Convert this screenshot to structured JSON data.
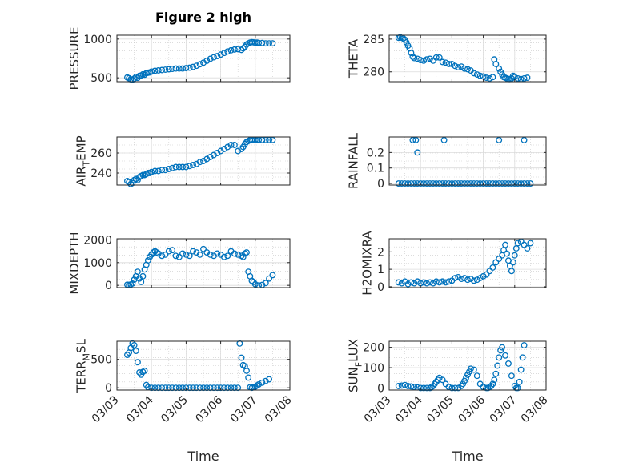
{
  "figure": {
    "title": "Figure 2 high"
  },
  "colors": {
    "marker": "#0072BD",
    "axis": "#262626",
    "grid": "#c8c8c8",
    "background": "#ffffff"
  },
  "x_axis": {
    "label": "Time",
    "ticks": [
      {
        "value": 0,
        "label": "03/03"
      },
      {
        "value": 1,
        "label": "03/04"
      },
      {
        "value": 2,
        "label": "03/05"
      },
      {
        "value": 3,
        "label": "03/06"
      },
      {
        "value": 4,
        "label": "03/07"
      },
      {
        "value": 5,
        "label": "03/08"
      }
    ],
    "range": [
      0,
      5
    ]
  },
  "chart_data": [
    {
      "id": "pressure",
      "type": "scatter",
      "ylabel": "PRESSURE",
      "ylim": [
        450,
        1050
      ],
      "yticks": [
        {
          "value": 500,
          "label": "500"
        },
        {
          "value": 1000,
          "label": "1000"
        }
      ],
      "grid": true,
      "show_xlabels": false,
      "x": [
        0.3,
        0.35,
        0.4,
        0.45,
        0.5,
        0.55,
        0.6,
        0.65,
        0.7,
        0.75,
        0.8,
        0.85,
        0.9,
        0.95,
        1.0,
        1.1,
        1.2,
        1.3,
        1.4,
        1.5,
        1.6,
        1.7,
        1.8,
        1.9,
        2.0,
        2.1,
        2.2,
        2.3,
        2.4,
        2.5,
        2.6,
        2.7,
        2.8,
        2.9,
        3.0,
        3.1,
        3.2,
        3.3,
        3.4,
        3.5,
        3.6,
        3.65,
        3.7,
        3.75,
        3.8,
        3.85,
        3.9,
        3.95,
        4.0,
        4.05,
        4.1,
        4.2,
        4.3,
        4.4,
        4.5
      ],
      "y": [
        505,
        495,
        480,
        475,
        490,
        510,
        500,
        525,
        530,
        545,
        540,
        560,
        565,
        570,
        580,
        590,
        595,
        600,
        605,
        610,
        615,
        620,
        620,
        620,
        625,
        630,
        640,
        655,
        675,
        695,
        720,
        745,
        765,
        780,
        800,
        820,
        840,
        855,
        865,
        870,
        860,
        880,
        900,
        930,
        945,
        955,
        960,
        958,
        955,
        955,
        950,
        950,
        945,
        945,
        945
      ]
    },
    {
      "id": "theta",
      "type": "scatter",
      "ylabel": "THETA",
      "ylim": [
        278.5,
        285.6
      ],
      "yticks": [
        {
          "value": 280,
          "label": "280"
        },
        {
          "value": 285,
          "label": "285"
        }
      ],
      "grid": true,
      "show_xlabels": false,
      "x": [
        0.3,
        0.35,
        0.4,
        0.45,
        0.5,
        0.55,
        0.6,
        0.65,
        0.7,
        0.75,
        0.8,
        0.9,
        1.0,
        1.1,
        1.2,
        1.3,
        1.4,
        1.5,
        1.6,
        1.7,
        1.8,
        1.9,
        2.0,
        2.1,
        2.2,
        2.3,
        2.4,
        2.5,
        2.6,
        2.7,
        2.8,
        2.9,
        3.0,
        3.1,
        3.2,
        3.3,
        3.35,
        3.4,
        3.5,
        3.55,
        3.6,
        3.65,
        3.7,
        3.75,
        3.8,
        3.85,
        3.9,
        3.95,
        4.0,
        4.1,
        4.2,
        4.3,
        4.4
      ],
      "y": [
        285.2,
        285.3,
        285.2,
        285.1,
        284.9,
        284.5,
        284.0,
        283.6,
        282.9,
        282.3,
        282.1,
        282.0,
        281.8,
        281.7,
        281.9,
        282.0,
        281.7,
        282.2,
        282.2,
        281.5,
        281.4,
        281.2,
        281.2,
        280.9,
        280.7,
        280.8,
        280.5,
        280.4,
        280.2,
        279.8,
        279.6,
        279.4,
        279.3,
        279.1,
        279.0,
        279.2,
        281.9,
        281.2,
        280.5,
        280.0,
        279.6,
        279.2,
        279.1,
        279.0,
        278.9,
        278.9,
        279.0,
        279.4,
        279.2,
        279.0,
        278.9,
        279.0,
        279.1
      ]
    },
    {
      "id": "air_temp",
      "type": "scatter",
      "ylabel": "AIR",
      "ylabel_sub": "T",
      "ylabel_tail": "EMP",
      "ylim": [
        228,
        276
      ],
      "yticks": [
        {
          "value": 240,
          "label": "240"
        },
        {
          "value": 260,
          "label": "260"
        }
      ],
      "grid": true,
      "show_xlabels": false,
      "x": [
        0.3,
        0.35,
        0.4,
        0.45,
        0.5,
        0.55,
        0.6,
        0.65,
        0.7,
        0.75,
        0.8,
        0.85,
        0.9,
        0.95,
        1.0,
        1.1,
        1.2,
        1.3,
        1.4,
        1.5,
        1.6,
        1.7,
        1.8,
        1.9,
        2.0,
        2.1,
        2.2,
        2.3,
        2.4,
        2.5,
        2.6,
        2.7,
        2.8,
        2.9,
        3.0,
        3.1,
        3.2,
        3.3,
        3.4,
        3.5,
        3.6,
        3.65,
        3.7,
        3.75,
        3.8,
        3.85,
        3.9,
        3.95,
        4.0,
        4.05,
        4.1,
        4.2,
        4.3,
        4.4,
        4.5
      ],
      "y": [
        232,
        231,
        229,
        230,
        233,
        234,
        233,
        236,
        237,
        238,
        238,
        239,
        240,
        240,
        241,
        242,
        242,
        243,
        243,
        244,
        245,
        246,
        246,
        246,
        246,
        247,
        248,
        249,
        251,
        252,
        254,
        256,
        258,
        260,
        262,
        264,
        266,
        268,
        268,
        262,
        264,
        266,
        269,
        271,
        272,
        273,
        273,
        273,
        273,
        273,
        273,
        273,
        273,
        273,
        273
      ]
    },
    {
      "id": "rainfall",
      "type": "scatter",
      "ylabel": "RAINFALL",
      "ylim": [
        -0.01,
        0.3
      ],
      "yticks": [
        {
          "value": 0,
          "label": "0"
        },
        {
          "value": 0.1,
          "label": "0.1"
        },
        {
          "value": 0.2,
          "label": "0.2"
        }
      ],
      "grid": true,
      "show_xlabels": false,
      "x": [
        0.3,
        0.4,
        0.5,
        0.6,
        0.7,
        0.8,
        0.9,
        1.0,
        1.1,
        1.2,
        1.3,
        1.4,
        1.5,
        1.6,
        1.7,
        1.8,
        1.9,
        2.0,
        2.1,
        2.2,
        2.3,
        2.4,
        2.5,
        2.6,
        2.7,
        2.8,
        2.9,
        3.0,
        3.1,
        3.2,
        3.3,
        3.4,
        3.5,
        3.6,
        3.7,
        3.8,
        3.9,
        4.0,
        4.1,
        4.2,
        4.3,
        4.4,
        4.5,
        0.75,
        0.85,
        0.9,
        1.75,
        3.5,
        4.3
      ],
      "y": [
        0,
        0,
        0,
        0,
        0,
        0,
        0,
        0,
        0,
        0,
        0,
        0,
        0,
        0,
        0,
        0,
        0,
        0,
        0,
        0,
        0,
        0,
        0,
        0,
        0,
        0,
        0,
        0,
        0,
        0,
        0,
        0,
        0,
        0,
        0,
        0,
        0,
        0,
        0,
        0,
        0,
        0,
        0,
        0.28,
        0.28,
        0.2,
        0.28,
        0.28,
        0.28
      ]
    },
    {
      "id": "mixdepth",
      "type": "scatter",
      "ylabel": "MIXDEPTH",
      "ylim": [
        -100,
        2050
      ],
      "yticks": [
        {
          "value": 0,
          "label": "0"
        },
        {
          "value": 1000,
          "label": "1000"
        },
        {
          "value": 2000,
          "label": "2000"
        }
      ],
      "grid": true,
      "show_xlabels": false,
      "x": [
        0.3,
        0.35,
        0.4,
        0.45,
        0.5,
        0.55,
        0.6,
        0.65,
        0.7,
        0.75,
        0.8,
        0.85,
        0.9,
        0.95,
        1.0,
        1.05,
        1.1,
        1.15,
        1.2,
        1.3,
        1.4,
        1.5,
        1.6,
        1.7,
        1.8,
        1.9,
        2.0,
        2.1,
        2.2,
        2.3,
        2.4,
        2.5,
        2.6,
        2.7,
        2.8,
        2.9,
        3.0,
        3.1,
        3.2,
        3.3,
        3.4,
        3.5,
        3.6,
        3.65,
        3.7,
        3.75,
        3.8,
        3.85,
        3.9,
        3.95,
        4.0,
        4.1,
        4.2,
        4.3,
        4.4,
        4.5
      ],
      "y": [
        30,
        20,
        40,
        80,
        250,
        400,
        600,
        300,
        150,
        400,
        700,
        900,
        1100,
        1250,
        1350,
        1450,
        1500,
        1450,
        1400,
        1300,
        1350,
        1500,
        1550,
        1300,
        1250,
        1400,
        1350,
        1300,
        1500,
        1450,
        1350,
        1600,
        1450,
        1350,
        1300,
        1400,
        1350,
        1250,
        1300,
        1500,
        1400,
        1350,
        1300,
        1250,
        1400,
        1450,
        600,
        400,
        200,
        150,
        50,
        0,
        20,
        100,
        300,
        450
      ]
    },
    {
      "id": "h2omixra",
      "type": "scatter",
      "ylabel": "H2OMIXRA",
      "ylim": [
        -0.05,
        2.75
      ],
      "yticks": [
        {
          "value": 0,
          "label": "0"
        },
        {
          "value": 1,
          "label": "1"
        },
        {
          "value": 2,
          "label": "2"
        }
      ],
      "grid": true,
      "show_xlabels": false,
      "x": [
        0.3,
        0.4,
        0.5,
        0.6,
        0.7,
        0.8,
        0.9,
        1.0,
        1.1,
        1.2,
        1.3,
        1.4,
        1.5,
        1.6,
        1.7,
        1.8,
        1.9,
        2.0,
        2.1,
        2.2,
        2.3,
        2.4,
        2.5,
        2.6,
        2.7,
        2.8,
        2.9,
        3.0,
        3.1,
        3.2,
        3.3,
        3.4,
        3.5,
        3.6,
        3.65,
        3.7,
        3.75,
        3.8,
        3.85,
        3.9,
        3.95,
        4.0,
        4.05,
        4.1,
        4.2,
        4.3,
        4.4,
        4.5
      ],
      "y": [
        0.25,
        0.2,
        0.3,
        0.15,
        0.25,
        0.2,
        0.3,
        0.2,
        0.25,
        0.2,
        0.25,
        0.2,
        0.3,
        0.25,
        0.3,
        0.25,
        0.3,
        0.35,
        0.5,
        0.55,
        0.45,
        0.5,
        0.4,
        0.45,
        0.35,
        0.4,
        0.5,
        0.6,
        0.7,
        0.9,
        1.1,
        1.4,
        1.6,
        1.8,
        2.1,
        2.4,
        1.9,
        1.5,
        1.2,
        0.9,
        1.4,
        1.8,
        2.2,
        2.5,
        2.6,
        2.4,
        2.2,
        2.5
      ]
    },
    {
      "id": "terr_msl",
      "type": "scatter",
      "ylabel": "TERR",
      "ylabel_sub": "M",
      "ylabel_tail": "SL",
      "ylim": [
        -40,
        820
      ],
      "yticks": [
        {
          "value": 0,
          "label": "0"
        },
        {
          "value": 500,
          "label": "500"
        }
      ],
      "grid": true,
      "show_xlabels": true,
      "x": [
        0.3,
        0.35,
        0.4,
        0.45,
        0.5,
        0.55,
        0.6,
        0.65,
        0.7,
        0.75,
        0.8,
        0.85,
        0.9,
        1.0,
        1.1,
        1.2,
        1.3,
        1.4,
        1.5,
        1.6,
        1.7,
        1.8,
        1.9,
        2.0,
        2.1,
        2.2,
        2.3,
        2.4,
        2.5,
        2.6,
        2.7,
        2.8,
        2.9,
        3.0,
        3.1,
        3.2,
        3.3,
        3.4,
        3.5,
        3.55,
        3.6,
        3.65,
        3.7,
        3.75,
        3.8,
        3.85,
        3.9,
        3.95,
        4.0,
        4.05,
        4.1,
        4.2,
        4.3,
        4.4
      ],
      "y": [
        580,
        620,
        700,
        780,
        750,
        650,
        450,
        270,
        230,
        280,
        300,
        50,
        10,
        0,
        0,
        0,
        0,
        0,
        0,
        0,
        0,
        0,
        0,
        0,
        0,
        0,
        0,
        0,
        0,
        0,
        0,
        0,
        0,
        0,
        0,
        0,
        0,
        0,
        0,
        780,
        530,
        400,
        380,
        300,
        180,
        10,
        0,
        10,
        20,
        40,
        60,
        90,
        120,
        150
      ]
    },
    {
      "id": "sun_flux",
      "type": "scatter",
      "ylabel": "SUN",
      "ylabel_sub": "F",
      "ylabel_tail": "LUX",
      "ylim": [
        -10,
        230
      ],
      "yticks": [
        {
          "value": 0,
          "label": "0"
        },
        {
          "value": 100,
          "label": "100"
        },
        {
          "value": 200,
          "label": "200"
        }
      ],
      "grid": true,
      "show_xlabels": true,
      "x": [
        0.3,
        0.4,
        0.5,
        0.6,
        0.7,
        0.8,
        0.9,
        1.0,
        1.1,
        1.2,
        1.3,
        1.35,
        1.4,
        1.45,
        1.5,
        1.55,
        1.6,
        1.7,
        1.8,
        1.9,
        2.0,
        2.1,
        2.2,
        2.3,
        2.35,
        2.4,
        2.45,
        2.5,
        2.55,
        2.6,
        2.7,
        2.8,
        2.9,
        3.0,
        3.1,
        3.15,
        3.2,
        3.25,
        3.3,
        3.35,
        3.4,
        3.45,
        3.5,
        3.55,
        3.6,
        3.7,
        3.8,
        3.9,
        4.0,
        4.05,
        4.1,
        4.15,
        4.2,
        4.25,
        4.3
      ],
      "y": [
        10,
        12,
        15,
        10,
        8,
        5,
        3,
        0,
        0,
        0,
        0,
        5,
        10,
        20,
        30,
        40,
        50,
        40,
        20,
        5,
        0,
        0,
        0,
        10,
        20,
        35,
        50,
        65,
        80,
        95,
        90,
        60,
        20,
        5,
        0,
        0,
        5,
        10,
        20,
        40,
        70,
        110,
        150,
        185,
        200,
        160,
        120,
        60,
        10,
        0,
        0,
        30,
        90,
        150,
        210
      ]
    }
  ]
}
